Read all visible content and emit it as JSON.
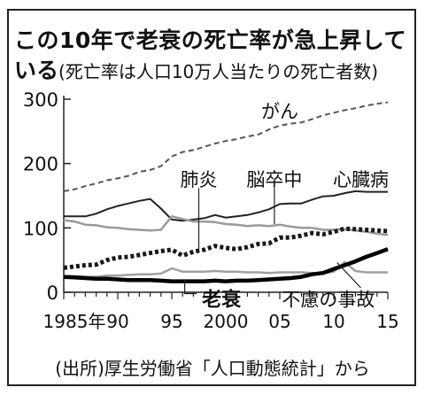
{
  "title": {
    "line1": "この10年で老衰の死亡率が急上昇して",
    "line2_bold": "いる",
    "subtitle": "(死亡率は人口10万人当たりの死亡者数)"
  },
  "source": "(出所)厚生労働省「人口動態統計」から",
  "chart_data": {
    "type": "line",
    "title": "この10年で老衰の死亡率が急上昇している",
    "subtitle": "(死亡率は人口10万人当たりの死亡者数)",
    "xlim": [
      1985,
      2015
    ],
    "ylim": [
      0,
      300
    ],
    "yticks": [
      0,
      100,
      200,
      300
    ],
    "xticks": [
      {
        "value": 1985,
        "label": "1985年"
      },
      {
        "value": 1990,
        "label": "90"
      },
      {
        "value": 1995,
        "label": "95"
      },
      {
        "value": 2000,
        "label": "2000"
      },
      {
        "value": 2005,
        "label": "05"
      },
      {
        "value": 2010,
        "label": "10"
      },
      {
        "value": 2015,
        "label": "15"
      }
    ],
    "grid": false,
    "legend": "inline-labels",
    "x": [
      1985,
      1986,
      1987,
      1988,
      1989,
      1990,
      1991,
      1992,
      1993,
      1994,
      1995,
      1996,
      1997,
      1998,
      1999,
      2000,
      2001,
      2002,
      2003,
      2004,
      2005,
      2006,
      2007,
      2008,
      2009,
      2010,
      2011,
      2012,
      2013,
      2014,
      2015
    ],
    "series": [
      {
        "name": "がん",
        "style": "dashed",
        "color": "#555555",
        "values": [
          157,
          160,
          165,
          169,
          174,
          177,
          181,
          187,
          190,
          196,
          211,
          218,
          221,
          226,
          231,
          235,
          238,
          242,
          245,
          253,
          259,
          262,
          264,
          269,
          275,
          279,
          283,
          286,
          290,
          293,
          295
        ]
      },
      {
        "name": "心臓病",
        "style": "solid",
        "color": "#222222",
        "values": [
          118,
          118,
          118,
          122,
          129,
          134,
          138,
          142,
          145,
          130,
          113,
          111,
          113,
          115,
          120,
          116,
          118,
          120,
          124,
          129,
          137,
          138,
          138,
          144,
          149,
          150,
          154,
          157,
          156,
          156,
          156
        ]
      },
      {
        "name": "脳卒中",
        "style": "solid-gray",
        "color": "#9a9a9a",
        "values": [
          112,
          110,
          105,
          104,
          101,
          100,
          98,
          97,
          96,
          97,
          118,
          114,
          110,
          110,
          109,
          106,
          105,
          103,
          104,
          103,
          105,
          102,
          100,
          100,
          97,
          97,
          98,
          96,
          94,
          91,
          89
        ]
      },
      {
        "name": "肺炎",
        "style": "dotted-bold",
        "color": "#1a1a1a",
        "values": [
          38,
          40,
          42,
          43,
          50,
          54,
          55,
          58,
          61,
          64,
          66,
          57,
          63,
          66,
          72,
          69,
          67,
          70,
          75,
          76,
          85,
          85,
          88,
          92,
          90,
          94,
          99,
          98,
          97,
          96,
          95
        ]
      },
      {
        "name": "不慮の事故",
        "style": "solid-gray",
        "color": "#a0a0a0",
        "values": [
          25,
          25,
          24,
          24,
          26,
          26,
          27,
          28,
          28,
          29,
          37,
          32,
          32,
          32,
          33,
          32,
          32,
          31,
          31,
          30,
          31,
          31,
          31,
          30,
          30,
          32,
          47,
          33,
          31,
          31,
          31
        ]
      },
      {
        "name": "老衰",
        "style": "solid-thick",
        "color": "#000000",
        "values": [
          24,
          23,
          22,
          21,
          21,
          20,
          19,
          19,
          19,
          18,
          17,
          17,
          17,
          17,
          18,
          17,
          18,
          18,
          19,
          20,
          21,
          22,
          24,
          28,
          30,
          36,
          42,
          48,
          55,
          61,
          67
        ]
      }
    ],
    "labels": [
      {
        "series": "がん",
        "text": "がん",
        "x": 2005,
        "y": 282
      },
      {
        "series": "肺炎",
        "text": "肺炎",
        "x": 1997.5,
        "y": 176
      },
      {
        "series": "脳卒中",
        "text": "脳卒中",
        "x": 2004.5,
        "y": 176
      },
      {
        "series": "心臓病",
        "text": "心臓病",
        "x": 2012.5,
        "y": 176
      },
      {
        "series": "老衰",
        "text": "老衰",
        "x": 1997.8,
        "y": -10
      },
      {
        "series": "不慮の事故",
        "text": "不慮の事故",
        "x": 2009.5,
        "y": -10
      }
    ]
  }
}
